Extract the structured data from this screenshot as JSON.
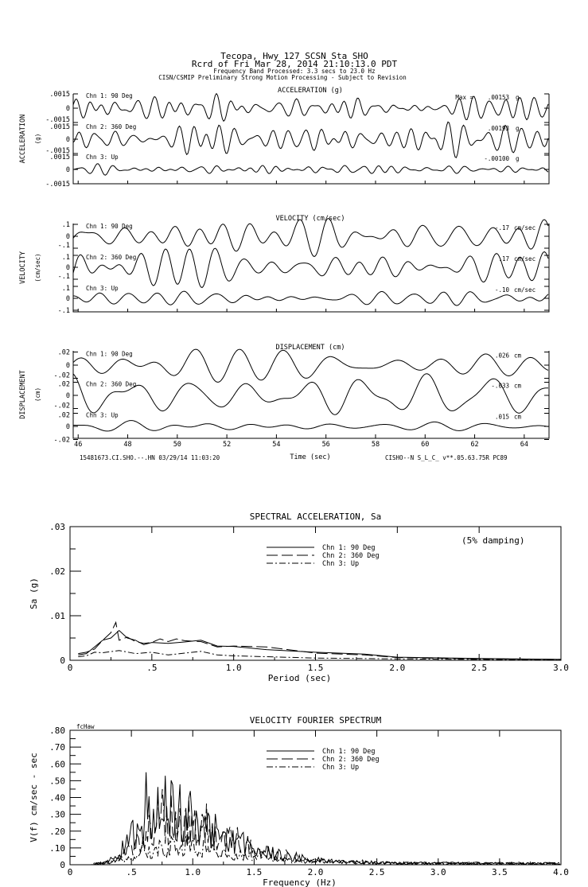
{
  "header": {
    "line1": "Tecopa, Hwy 127     SCSN Sta SHO",
    "line2": "Rcrd of Fri Mar 28, 2014 21:10:13.0 PDT",
    "line3": "Frequency Band Processed: 3.3 secs to 23.0 Hz",
    "line4": "CISN/CSMIP Preliminary Strong Motion Processing - Subject to Revision"
  },
  "chart_data": [
    {
      "type": "line",
      "title": "ACCELERATION (g)",
      "ylabel": "ACCELERATION",
      "yunit": "(g)",
      "xlabel": "Time (sec)",
      "xlim": [
        45.8,
        65
      ],
      "ylim": [
        -0.0015,
        0.0015
      ],
      "yticks": [
        ".0015",
        "0",
        "-.0015"
      ],
      "max_label": "Max =",
      "series": [
        {
          "name": "Chn 1: 90 Deg",
          "peak": ".00153",
          "unit": "g"
        },
        {
          "name": "Chn 2: 360 Deg",
          "peak": ".00193",
          "unit": "g"
        },
        {
          "name": "Chn 3: Up",
          "peak": "-.00100",
          "unit": "g"
        }
      ]
    },
    {
      "type": "line",
      "title": "VELOCITY (cm/sec)",
      "ylabel": "VELOCITY",
      "yunit": "(cm/sec)",
      "xlim": [
        45.8,
        65
      ],
      "ylim": [
        -0.1,
        0.1
      ],
      "yticks": [
        ".1",
        "0",
        "-.1"
      ],
      "series": [
        {
          "name": "Chn 1: 90 Deg",
          "peak": "-.17",
          "unit": "cm/sec"
        },
        {
          "name": "Chn 2: 360 Deg",
          "peak": ".17",
          "unit": "cm/sec"
        },
        {
          "name": "Chn 3: Up",
          "peak": "-.10",
          "unit": "cm/sec"
        }
      ]
    },
    {
      "type": "line",
      "title": "DISPLACEMENT (cm)",
      "ylabel": "DISPLACEMENT",
      "yunit": "(cm)",
      "xlabel": "Time (sec)",
      "xlim": [
        45.8,
        65
      ],
      "ylim": [
        -0.02,
        0.02
      ],
      "yticks": [
        ".02",
        "0",
        "-.02"
      ],
      "xticks": [
        "46",
        "48",
        "50",
        "52",
        "54",
        "56",
        "58",
        "60",
        "62",
        "64"
      ],
      "footer_left": "15481673.CI.SHO.--.HN 03/29/14 11:03:20",
      "footer_right": "CISHO--N  S_L_C_  v**.05.63.75R PC89",
      "series": [
        {
          "name": "Chn 1: 90 Deg",
          "peak": ".026",
          "unit": "cm"
        },
        {
          "name": "Chn 2: 360 Deg",
          "peak": "-.033",
          "unit": "cm"
        },
        {
          "name": "Chn 3: Up",
          "peak": ".015",
          "unit": "cm"
        }
      ]
    },
    {
      "type": "line",
      "title": "SPECTRAL ACCELERATION, Sa",
      "xlabel": "Period (sec)",
      "ylabel": "Sa (g)",
      "xlim": [
        0,
        3.0
      ],
      "ylim": [
        0,
        0.03
      ],
      "xticks": [
        "0",
        ".5",
        "1.0",
        "1.5",
        "2.0",
        "2.5",
        "3.0"
      ],
      "yticks": [
        ".03",
        ".02",
        ".01",
        "0"
      ],
      "annotation": "(5% damping)",
      "legend": "top-center",
      "series": [
        {
          "name": "Chn 1: 90 Deg",
          "style": "solid",
          "x": [
            0.05,
            0.1,
            0.15,
            0.2,
            0.25,
            0.3,
            0.35,
            0.4,
            0.45,
            0.5,
            0.6,
            0.7,
            0.8,
            0.9,
            1.0,
            1.2,
            1.5,
            1.8,
            2.0,
            2.5,
            3.0
          ],
          "y": [
            0.0012,
            0.0015,
            0.003,
            0.0045,
            0.005,
            0.0067,
            0.005,
            0.0045,
            0.0035,
            0.004,
            0.0038,
            0.0041,
            0.0045,
            0.0032,
            0.0031,
            0.0024,
            0.0018,
            0.0014,
            0.0007,
            0.0004,
            0.0002
          ]
        },
        {
          "name": "Chn 2: 360 Deg",
          "style": "dashed",
          "x": [
            0.05,
            0.1,
            0.15,
            0.2,
            0.25,
            0.28,
            0.3,
            0.35,
            0.4,
            0.45,
            0.5,
            0.55,
            0.6,
            0.65,
            0.7,
            0.8,
            0.9,
            1.0,
            1.2,
            1.5,
            1.8,
            2.0,
            2.5,
            3.0
          ],
          "y": [
            0.0015,
            0.0018,
            0.0025,
            0.0045,
            0.0062,
            0.0085,
            0.0045,
            0.0052,
            0.0042,
            0.0038,
            0.004,
            0.0048,
            0.0042,
            0.0048,
            0.0044,
            0.0042,
            0.003,
            0.0032,
            0.003,
            0.0016,
            0.0012,
            0.0006,
            0.0003,
            0.0002
          ]
        },
        {
          "name": "Chn 3: Up",
          "style": "dash-dot",
          "x": [
            0.05,
            0.1,
            0.15,
            0.2,
            0.3,
            0.4,
            0.5,
            0.6,
            0.7,
            0.8,
            0.9,
            1.0,
            1.5,
            2.0,
            2.5,
            3.0
          ],
          "y": [
            0.0008,
            0.001,
            0.0018,
            0.0017,
            0.0022,
            0.0015,
            0.0018,
            0.0012,
            0.0016,
            0.002,
            0.0012,
            0.001,
            0.0005,
            0.0003,
            0.0002,
            0.0001
          ]
        }
      ]
    },
    {
      "type": "line",
      "title": "VELOCITY FOURIER SPECTRUM",
      "corner_label": "fcHaw",
      "xlabel": "Frequency (Hz)",
      "ylabel": "V(f)   cm/sec - sec",
      "xlim": [
        0,
        4.0
      ],
      "ylim": [
        0,
        0.8
      ],
      "xticks": [
        "0",
        ".5",
        "1.0",
        "1.5",
        "2.0",
        "2.5",
        "3.0",
        "3.5",
        "4.0"
      ],
      "yticks": [
        ".80",
        ".70",
        ".60",
        ".50",
        ".40",
        ".30",
        ".20",
        ".10",
        "0"
      ],
      "legend": "top-center",
      "series": [
        {
          "name": "Chn 1: 90 Deg",
          "style": "solid",
          "peak_x": 0.62,
          "peak_y": 0.55
        },
        {
          "name": "Chn 2: 360 Deg",
          "style": "dashed",
          "peak_x": 0.75,
          "peak_y": 0.45
        },
        {
          "name": "Chn 3: Up",
          "style": "dash-dot",
          "peak_x": 0.6,
          "peak_y": 0.17
        }
      ]
    }
  ]
}
